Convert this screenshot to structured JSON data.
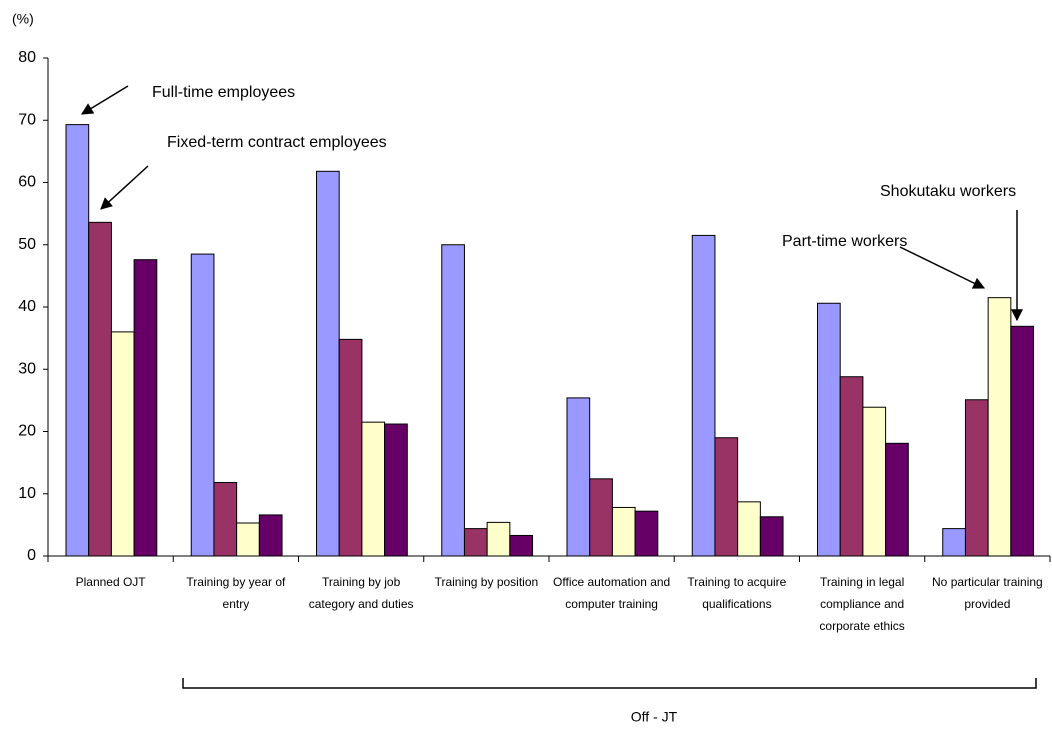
{
  "chart_data": {
    "type": "bar",
    "y_label": "(%)",
    "group_label": "Off - JT",
    "categories": [
      "Planned OJT",
      "Training by year of entry",
      "Training by job category and duties",
      "Training by position",
      "Office automation and computer training",
      "Training to acquire qualifications",
      "Training in legal compliance and corporate ethics",
      "No particular training provided"
    ],
    "series": [
      {
        "name": "Full-time employees",
        "color": "#9999ff",
        "values": [
          69.3,
          48.5,
          61.8,
          50,
          25.4,
          51.5,
          40.6,
          4.4
        ]
      },
      {
        "name": "Fixed-term contract employees",
        "color": "#993366",
        "values": [
          53.6,
          11.8,
          34.8,
          4.4,
          12.4,
          19,
          28.8,
          25.1
        ]
      },
      {
        "name": "Part-time workers",
        "color": "#ffffcc",
        "values": [
          36,
          5.3,
          21.5,
          5.4,
          7.8,
          8.7,
          23.9,
          41.5
        ]
      },
      {
        "name": "Shokutaku workers",
        "color": "#660066",
        "values": [
          47.6,
          6.6,
          21.2,
          3.3,
          7.2,
          6.3,
          18.1,
          36.9
        ]
      }
    ],
    "ylim": [
      0,
      80
    ],
    "yticks": [
      0,
      10,
      20,
      30,
      40,
      50,
      60,
      70,
      80
    ]
  }
}
